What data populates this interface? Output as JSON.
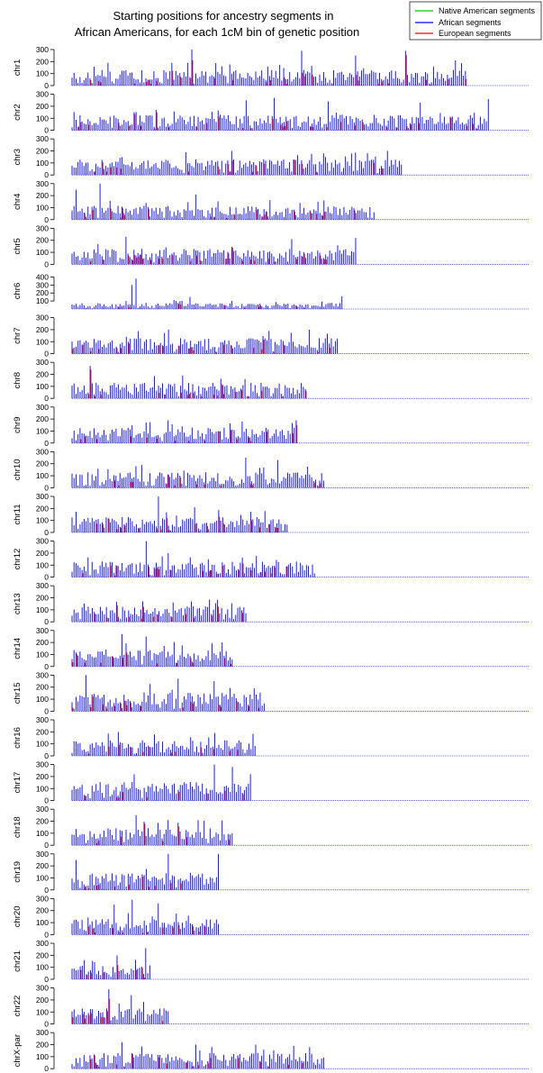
{
  "chart_data": {
    "type": "bar",
    "title": "Starting positions for ancestry segments in",
    "subtitle": "African Americans, for each 1cM bin of genetic position",
    "legend": {
      "placement": "top-right",
      "entries": [
        {
          "label": "Native American segments",
          "color": "#00cc00"
        },
        {
          "label": "African segments",
          "color": "#0000ff"
        },
        {
          "label": "European segments",
          "color": "#ff0000"
        }
      ]
    },
    "yticks": [
      0,
      100,
      200,
      300
    ],
    "yticks_chr6": [
      100,
      200,
      300,
      400
    ],
    "panels": [
      {
        "label": "chr1",
        "ylim": [
          0,
          300
        ],
        "extent": 0.86,
        "typical": 100,
        "spikes": [
          [
            0.26,
            330
          ],
          [
            0.5,
            290
          ],
          [
            0.62,
            250
          ],
          [
            0.73,
            290
          ],
          [
            0.84,
            210
          ]
        ]
      },
      {
        "label": "chr2",
        "ylim": [
          0,
          300
        ],
        "extent": 0.91,
        "typical": 100,
        "spikes": [
          [
            0.38,
            250
          ],
          [
            0.44,
            270
          ],
          [
            0.56,
            240
          ],
          [
            0.76,
            230
          ],
          [
            0.91,
            260
          ]
        ]
      },
      {
        "label": "chr3",
        "ylim": [
          0,
          300
        ],
        "extent": 0.72,
        "typical": 100,
        "spikes": [
          [
            0.25,
            190
          ],
          [
            0.35,
            200
          ],
          [
            0.55,
            180
          ],
          [
            0.69,
            200
          ]
        ]
      },
      {
        "label": "chr4",
        "ylim": [
          0,
          300
        ],
        "extent": 0.66,
        "typical": 90,
        "spikes": [
          [
            0.01,
            250
          ],
          [
            0.06,
            340
          ],
          [
            0.27,
            210
          ],
          [
            0.55,
            160
          ]
        ]
      },
      {
        "label": "chr5",
        "ylim": [
          0,
          300
        ],
        "extent": 0.62,
        "typical": 100,
        "spikes": [
          [
            0.12,
            230
          ],
          [
            0.48,
            210
          ],
          [
            0.62,
            220
          ]
        ]
      },
      {
        "label": "chr6",
        "ylim": [
          0,
          450
        ],
        "extent": 0.59,
        "typical": 60,
        "spikes": [
          [
            0.14,
            380
          ],
          [
            0.13,
            300
          ],
          [
            0.26,
            150
          ],
          [
            0.59,
            160
          ]
        ]
      },
      {
        "label": "chr7",
        "ylim": [
          0,
          300
        ],
        "extent": 0.58,
        "typical": 100,
        "spikes": [
          [
            0.21,
            200
          ],
          [
            0.43,
            190
          ],
          [
            0.52,
            200
          ]
        ]
      },
      {
        "label": "chr8",
        "ylim": [
          0,
          300
        ],
        "extent": 0.51,
        "typical": 100,
        "spikes": [
          [
            0.04,
            270
          ],
          [
            0.24,
            190
          ],
          [
            0.38,
            160
          ]
        ]
      },
      {
        "label": "chr9",
        "ylim": [
          0,
          300
        ],
        "extent": 0.49,
        "typical": 100,
        "spikes": [
          [
            0.21,
            190
          ],
          [
            0.37,
            180
          ],
          [
            0.49,
            190
          ]
        ]
      },
      {
        "label": "chr10",
        "ylim": [
          0,
          300
        ],
        "extent": 0.55,
        "typical": 100,
        "spikes": [
          [
            0.14,
            180
          ],
          [
            0.38,
            250
          ],
          [
            0.45,
            230
          ]
        ]
      },
      {
        "label": "chr11",
        "ylim": [
          0,
          300
        ],
        "extent": 0.47,
        "typical": 100,
        "spikes": [
          [
            0.19,
            340
          ],
          [
            0.27,
            210
          ]
        ]
      },
      {
        "label": "chr12",
        "ylim": [
          0,
          300
        ],
        "extent": 0.53,
        "typical": 100,
        "spikes": [
          [
            0.16,
            310
          ],
          [
            0.21,
            200
          ]
        ]
      },
      {
        "label": "chr13",
        "ylim": [
          0,
          300
        ],
        "extent": 0.38,
        "typical": 100,
        "spikes": [
          [
            0.26,
            170
          ]
        ]
      },
      {
        "label": "chr14",
        "ylim": [
          0,
          300
        ],
        "extent": 0.35,
        "typical": 110,
        "spikes": [
          [
            0.11,
            270
          ],
          [
            0.16,
            250
          ],
          [
            0.33,
            200
          ]
        ]
      },
      {
        "label": "chr15",
        "ylim": [
          0,
          300
        ],
        "extent": 0.42,
        "typical": 120,
        "spikes": [
          [
            0.03,
            330
          ],
          [
            0.23,
            270
          ],
          [
            0.31,
            250
          ],
          [
            0.4,
            190
          ]
        ]
      },
      {
        "label": "chr16",
        "ylim": [
          0,
          300
        ],
        "extent": 0.4,
        "typical": 100,
        "spikes": [
          [
            0.1,
            200
          ],
          [
            0.31,
            190
          ]
        ]
      },
      {
        "label": "chr17",
        "ylim": [
          0,
          300
        ],
        "extent": 0.39,
        "typical": 120,
        "spikes": [
          [
            0.31,
            330
          ],
          [
            0.35,
            280
          ],
          [
            0.39,
            220
          ]
        ]
      },
      {
        "label": "chr18",
        "ylim": [
          0,
          300
        ],
        "extent": 0.35,
        "typical": 110,
        "spikes": [
          [
            0.14,
            250
          ],
          [
            0.21,
            210
          ]
        ]
      },
      {
        "label": "chr19",
        "ylim": [
          0,
          300
        ],
        "extent": 0.32,
        "typical": 110,
        "spikes": [
          [
            0.01,
            250
          ],
          [
            0.21,
            330
          ],
          [
            0.32,
            340
          ]
        ]
      },
      {
        "label": "chr20",
        "ylim": [
          0,
          300
        ],
        "extent": 0.32,
        "typical": 100,
        "spikes": [
          [
            0.09,
            250
          ],
          [
            0.13,
            290
          ],
          [
            0.19,
            260
          ]
        ]
      },
      {
        "label": "chr21",
        "ylim": [
          0,
          300
        ],
        "extent": 0.17,
        "typical": 90,
        "spikes": [
          [
            0.16,
            260
          ],
          [
            0.1,
            200
          ]
        ]
      },
      {
        "label": "chr22",
        "ylim": [
          0,
          300
        ],
        "extent": 0.21,
        "typical": 100,
        "spikes": [
          [
            0.08,
            290
          ],
          [
            0.13,
            240
          ],
          [
            0.2,
            130
          ]
        ]
      },
      {
        "label": "chrX-par",
        "ylim": [
          0,
          300
        ],
        "extent": 0.55,
        "typical": 100,
        "spikes": [
          [
            0.11,
            220
          ],
          [
            0.27,
            200
          ],
          [
            0.4,
            200
          ],
          [
            0.52,
            180
          ]
        ]
      }
    ]
  }
}
